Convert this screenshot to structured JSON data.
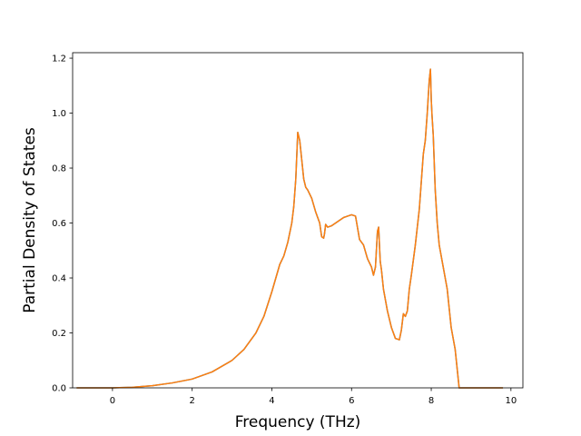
{
  "chart_data": {
    "type": "line",
    "title": "",
    "xlabel": "Frequency (THz)",
    "ylabel": "Partial Density of States",
    "xlim": [
      -1.0,
      10.3
    ],
    "ylim": [
      0.0,
      1.22
    ],
    "xticks": [
      0,
      2,
      4,
      6,
      8,
      10
    ],
    "yticks": [
      0.0,
      0.2,
      0.4,
      0.6,
      0.8,
      1.0,
      1.2
    ],
    "xtick_labels": [
      "0",
      "2",
      "4",
      "6",
      "8",
      "10"
    ],
    "ytick_labels": [
      "0.0",
      "0.2",
      "0.4",
      "0.6",
      "0.8",
      "1.0",
      "1.2"
    ],
    "grid": false,
    "legend": "none",
    "series": [
      {
        "color": "#1f77b4",
        "x": [
          -0.9,
          0.0,
          0.5,
          1.0,
          1.5,
          2.0,
          2.5,
          3.0,
          3.3,
          3.6,
          3.8,
          4.0,
          4.1,
          4.2,
          4.3,
          4.4,
          4.5,
          4.55,
          4.6,
          4.65,
          4.7,
          4.75,
          4.8,
          4.85,
          4.9,
          5.0,
          5.1,
          5.2,
          5.25,
          5.3,
          5.32,
          5.35,
          5.4,
          5.5,
          5.6,
          5.7,
          5.8,
          5.9,
          6.0,
          6.1,
          6.2,
          6.3,
          6.4,
          6.5,
          6.55,
          6.6,
          6.65,
          6.68,
          6.7,
          6.72,
          6.75,
          6.8,
          6.85,
          6.9,
          7.0,
          7.1,
          7.2,
          7.25,
          7.3,
          7.35,
          7.4,
          7.45,
          7.5,
          7.6,
          7.7,
          7.8,
          7.85,
          7.9,
          7.95,
          7.98,
          8.0,
          8.02,
          8.05,
          8.1,
          8.15,
          8.2,
          8.3,
          8.4,
          8.5,
          8.6,
          8.7,
          8.8,
          8.85,
          8.9,
          9.0,
          9.8
        ],
        "y": [
          0.0,
          0.0,
          0.002,
          0.008,
          0.018,
          0.032,
          0.058,
          0.1,
          0.14,
          0.2,
          0.26,
          0.35,
          0.4,
          0.45,
          0.48,
          0.53,
          0.6,
          0.66,
          0.76,
          0.93,
          0.9,
          0.83,
          0.76,
          0.73,
          0.72,
          0.69,
          0.64,
          0.6,
          0.55,
          0.545,
          0.56,
          0.595,
          0.585,
          0.59,
          0.6,
          0.61,
          0.62,
          0.625,
          0.63,
          0.625,
          0.54,
          0.52,
          0.47,
          0.44,
          0.41,
          0.44,
          0.57,
          0.585,
          0.52,
          0.46,
          0.43,
          0.36,
          0.32,
          0.28,
          0.22,
          0.18,
          0.175,
          0.21,
          0.27,
          0.26,
          0.28,
          0.36,
          0.41,
          0.52,
          0.65,
          0.85,
          0.9,
          1.0,
          1.12,
          1.16,
          1.05,
          0.99,
          0.92,
          0.72,
          0.6,
          0.52,
          0.44,
          0.36,
          0.22,
          0.14,
          0.0,
          0.0,
          0.0,
          0.0,
          0.0,
          0.0
        ]
      },
      {
        "color": "#ff7f0e",
        "x": [
          -0.9,
          0.0,
          0.5,
          1.0,
          1.5,
          2.0,
          2.5,
          3.0,
          3.3,
          3.6,
          3.8,
          4.0,
          4.1,
          4.2,
          4.3,
          4.4,
          4.5,
          4.55,
          4.6,
          4.65,
          4.7,
          4.75,
          4.8,
          4.85,
          4.9,
          5.0,
          5.1,
          5.2,
          5.25,
          5.3,
          5.32,
          5.35,
          5.4,
          5.5,
          5.6,
          5.7,
          5.8,
          5.9,
          6.0,
          6.1,
          6.2,
          6.3,
          6.4,
          6.5,
          6.55,
          6.6,
          6.65,
          6.68,
          6.7,
          6.72,
          6.75,
          6.8,
          6.85,
          6.9,
          7.0,
          7.1,
          7.2,
          7.25,
          7.3,
          7.35,
          7.4,
          7.45,
          7.5,
          7.6,
          7.7,
          7.8,
          7.85,
          7.9,
          7.95,
          7.98,
          8.0,
          8.02,
          8.05,
          8.1,
          8.15,
          8.2,
          8.3,
          8.4,
          8.5,
          8.6,
          8.7,
          8.8,
          8.85,
          8.9,
          9.0,
          9.8
        ],
        "y": [
          0.0,
          0.0,
          0.002,
          0.008,
          0.018,
          0.032,
          0.058,
          0.1,
          0.14,
          0.2,
          0.26,
          0.35,
          0.4,
          0.45,
          0.48,
          0.53,
          0.6,
          0.66,
          0.76,
          0.93,
          0.9,
          0.83,
          0.76,
          0.73,
          0.72,
          0.69,
          0.64,
          0.6,
          0.55,
          0.545,
          0.56,
          0.595,
          0.585,
          0.59,
          0.6,
          0.61,
          0.62,
          0.625,
          0.63,
          0.625,
          0.54,
          0.52,
          0.47,
          0.44,
          0.41,
          0.44,
          0.57,
          0.585,
          0.52,
          0.46,
          0.43,
          0.36,
          0.32,
          0.28,
          0.22,
          0.18,
          0.175,
          0.21,
          0.27,
          0.26,
          0.28,
          0.36,
          0.41,
          0.52,
          0.65,
          0.85,
          0.9,
          1.0,
          1.12,
          1.16,
          1.05,
          0.99,
          0.92,
          0.72,
          0.6,
          0.52,
          0.44,
          0.36,
          0.22,
          0.14,
          0.0,
          0.0,
          0.0,
          0.0,
          0.0,
          0.0
        ]
      }
    ]
  }
}
